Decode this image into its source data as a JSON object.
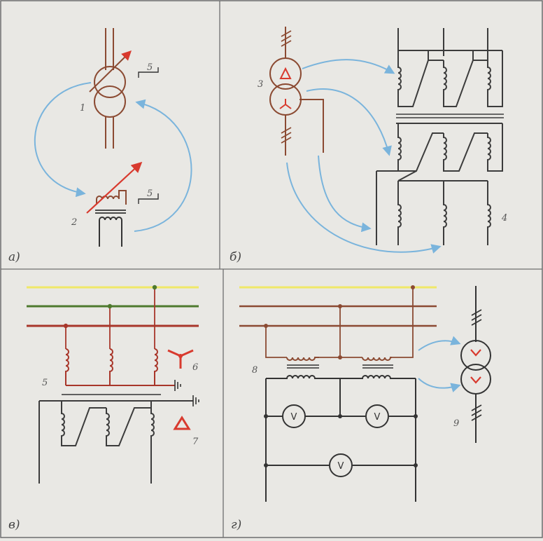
{
  "panels": {
    "a": {
      "label": "а)",
      "markers": [
        "1",
        "2",
        "5",
        "5"
      ]
    },
    "b": {
      "label": "б)",
      "markers": [
        "3",
        "4"
      ]
    },
    "v": {
      "label": "в)",
      "markers": [
        "5",
        "6",
        "7"
      ]
    },
    "g": {
      "label": "г)",
      "markers": [
        "8",
        "9"
      ]
    }
  },
  "voltmeter": {
    "symbol": "V"
  },
  "colors": {
    "background": "#e9e8e4",
    "frame": "#6e6e6e",
    "brown_wire": "#8b4a32",
    "dark_wire": "#3c3c3c",
    "red_symbol": "#d83a2e",
    "blue_arrow": "#7ab4dc",
    "bus_yellow": "#f0e868",
    "bus_green": "#4e7a2e",
    "bus_red": "#a8362a"
  }
}
